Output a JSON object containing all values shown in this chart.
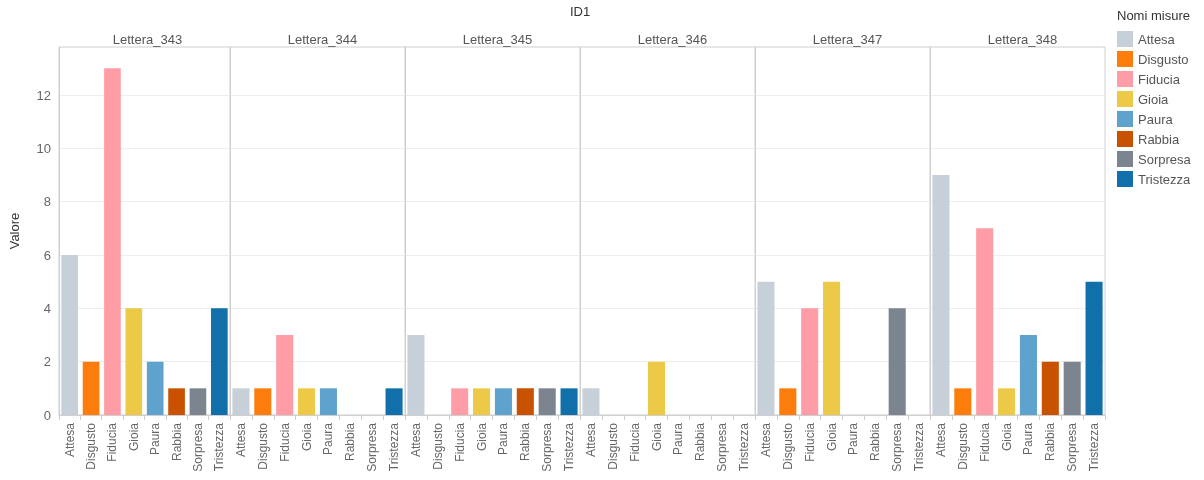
{
  "chart_data": [
    {
      "type": "bar",
      "title": "Lettera_343",
      "annotations": [
        "ID1"
      ],
      "ylabel": "Valore",
      "stacked": true,
      "categories": [
        "Attesa",
        "Disgusto",
        "Fiducia",
        "Gioia",
        "Paura",
        "Rabbia",
        "Sorpresa",
        "Tristezza"
      ],
      "series": [
        {
          "color": "#c7d0d9",
          "values": [
            6,
            null,
            null,
            null,
            null,
            null,
            null,
            null
          ]
        },
        {
          "color": "#fc7d0b",
          "values": [
            null,
            2,
            null,
            null,
            null,
            null,
            null,
            null
          ]
        },
        {
          "color": "#ff9da7",
          "values": [
            null,
            null,
            13,
            null,
            null,
            null,
            null,
            null
          ]
        },
        {
          "color": "#edc948",
          "values": [
            null,
            null,
            null,
            4,
            null,
            null,
            null,
            null
          ]
        },
        {
          "color": "#5fa2ce",
          "values": [
            null,
            null,
            null,
            null,
            2,
            null,
            null,
            null
          ]
        },
        {
          "color": "#c85200",
          "values": [
            null,
            null,
            null,
            null,
            null,
            1,
            null,
            null
          ]
        },
        {
          "color": "#7b848f",
          "values": [
            null,
            null,
            null,
            null,
            null,
            null,
            1,
            null
          ]
        },
        {
          "color": "#1170aa",
          "values": [
            null,
            null,
            null,
            null,
            null,
            null,
            null,
            4
          ]
        }
      ],
      "ylim": [
        0,
        13.8
      ],
      "yticks": [
        0,
        2,
        4,
        6,
        8,
        10,
        12
      ],
      "grid": "y"
    },
    {
      "type": "bar",
      "title": "Lettera_344",
      "stacked": true,
      "categories": [
        "Attesa",
        "Disgusto",
        "Fiducia",
        "Gioia",
        "Paura",
        "Rabbia",
        "Sorpresa",
        "Tristezza"
      ],
      "series": [
        {
          "color": "#c7d0d9",
          "values": [
            1,
            null,
            null,
            null,
            null,
            null,
            null,
            null
          ]
        },
        {
          "color": "#fc7d0b",
          "values": [
            null,
            1,
            null,
            null,
            null,
            null,
            null,
            null
          ]
        },
        {
          "color": "#ff9da7",
          "values": [
            null,
            null,
            3,
            null,
            null,
            null,
            null,
            null
          ]
        },
        {
          "color": "#edc948",
          "values": [
            null,
            null,
            null,
            1,
            null,
            null,
            null,
            null
          ]
        },
        {
          "color": "#5fa2ce",
          "values": [
            null,
            null,
            null,
            null,
            1,
            null,
            null,
            null
          ]
        },
        {
          "color": "#1170aa",
          "values": [
            null,
            null,
            null,
            null,
            null,
            null,
            null,
            1
          ]
        }
      ],
      "ylim": [
        0,
        13.8
      ],
      "yticks": [
        0,
        2,
        4,
        6,
        8,
        10,
        12
      ],
      "grid": "y",
      "tick_labels": "x"
    },
    {
      "type": "bar",
      "title": "Lettera_345",
      "stacked": true,
      "categories": [
        "Attesa",
        "Disgusto",
        "Fiducia",
        "Gioia",
        "Paura",
        "Rabbia",
        "Sorpresa",
        "Tristezza"
      ],
      "series": [
        {
          "color": "#c7d0d9",
          "values": [
            3,
            null,
            null,
            null,
            null,
            null,
            null,
            null
          ]
        },
        {
          "color": "#ff9da7",
          "values": [
            null,
            null,
            1,
            null,
            null,
            null,
            null,
            null
          ]
        },
        {
          "color": "#edc948",
          "values": [
            null,
            null,
            null,
            1,
            null,
            null,
            null,
            null
          ]
        },
        {
          "color": "#5fa2ce",
          "values": [
            null,
            null,
            null,
            null,
            1,
            null,
            null,
            null
          ]
        },
        {
          "color": "#c85200",
          "values": [
            null,
            null,
            null,
            null,
            null,
            1,
            null,
            null
          ]
        },
        {
          "color": "#7b848f",
          "values": [
            null,
            null,
            null,
            null,
            null,
            null,
            1,
            null
          ]
        },
        {
          "color": "#1170aa",
          "values": [
            null,
            null,
            null,
            null,
            null,
            null,
            null,
            1
          ]
        }
      ],
      "ylim": [
        0,
        13.8
      ],
      "yticks": [
        0,
        2,
        4,
        6,
        8,
        10,
        12
      ],
      "grid": "y",
      "tick_labels": "x"
    },
    {
      "type": "bar",
      "title": "Lettera_346",
      "stacked": true,
      "categories": [
        "Attesa",
        "Disgusto",
        "Fiducia",
        "Gioia",
        "Paura",
        "Rabbia",
        "Sorpresa",
        "Tristezza"
      ],
      "series": [
        {
          "color": "#c7d0d9",
          "values": [
            1,
            null,
            null,
            null,
            null,
            null,
            null,
            null
          ]
        },
        {
          "color": "#edc948",
          "values": [
            null,
            null,
            null,
            2,
            null,
            null,
            null,
            null
          ]
        }
      ],
      "ylim": [
        0,
        13.8
      ],
      "yticks": [
        0,
        2,
        4,
        6,
        8,
        10,
        12
      ],
      "grid": "y",
      "tick_labels": "x"
    },
    {
      "type": "bar",
      "title": "Lettera_347",
      "stacked": true,
      "categories": [
        "Attesa",
        "Disgusto",
        "Fiducia",
        "Gioia",
        "Paura",
        "Rabbia",
        "Sorpresa",
        "Tristezza"
      ],
      "series": [
        {
          "color": "#c7d0d9",
          "values": [
            5,
            null,
            null,
            null,
            null,
            null,
            null,
            null
          ]
        },
        {
          "color": "#fc7d0b",
          "values": [
            null,
            1,
            null,
            null,
            null,
            null,
            null,
            null
          ]
        },
        {
          "color": "#ff9da7",
          "values": [
            null,
            null,
            4,
            null,
            null,
            null,
            null,
            null
          ]
        },
        {
          "color": "#edc948",
          "values": [
            null,
            null,
            null,
            5,
            null,
            null,
            null,
            null
          ]
        },
        {
          "color": "#7b848f",
          "values": [
            null,
            null,
            null,
            null,
            null,
            null,
            4,
            null
          ]
        }
      ],
      "ylim": [
        0,
        13.8
      ],
      "yticks": [
        0,
        2,
        4,
        6,
        8,
        10,
        12
      ],
      "grid": "y",
      "tick_labels": "x"
    },
    {
      "type": "bar",
      "title": "Lettera_348",
      "legend": "right",
      "legend_title": "Nomi misure",
      "stacked": true,
      "categories": [
        "Attesa",
        "Disgusto",
        "Fiducia",
        "Gioia",
        "Paura",
        "Rabbia",
        "Sorpresa",
        "Tristezza"
      ],
      "series": [
        {
          "name": "Attesa",
          "color": "#c7d0d9",
          "values": [
            9,
            null,
            null,
            null,
            null,
            null,
            null,
            null
          ]
        },
        {
          "name": "Disgusto",
          "color": "#fc7d0b",
          "values": [
            null,
            1,
            null,
            null,
            null,
            null,
            null,
            null
          ]
        },
        {
          "name": "Fiducia",
          "color": "#ff9da7",
          "values": [
            null,
            null,
            7,
            null,
            null,
            null,
            null,
            null
          ]
        },
        {
          "name": "Gioia",
          "color": "#edc948",
          "values": [
            null,
            null,
            null,
            1,
            null,
            null,
            null,
            null
          ]
        },
        {
          "name": "Paura",
          "color": "#5fa2ce",
          "values": [
            null,
            null,
            null,
            null,
            3,
            null,
            null,
            null
          ]
        },
        {
          "name": "Rabbia",
          "color": "#c85200",
          "values": [
            null,
            null,
            null,
            null,
            null,
            2,
            null,
            null
          ]
        },
        {
          "name": "Sorpresa",
          "color": "#7b848f",
          "values": [
            null,
            null,
            null,
            null,
            null,
            null,
            2,
            null
          ]
        },
        {
          "name": "Tristezza",
          "color": "#1170aa",
          "values": [
            null,
            null,
            null,
            null,
            null,
            null,
            null,
            5
          ]
        }
      ],
      "ylim": [
        0,
        13.8
      ],
      "yticks": [
        0,
        2,
        4,
        6,
        8,
        10,
        12
      ],
      "grid": "y",
      "tick_labels": "x"
    }
  ]
}
